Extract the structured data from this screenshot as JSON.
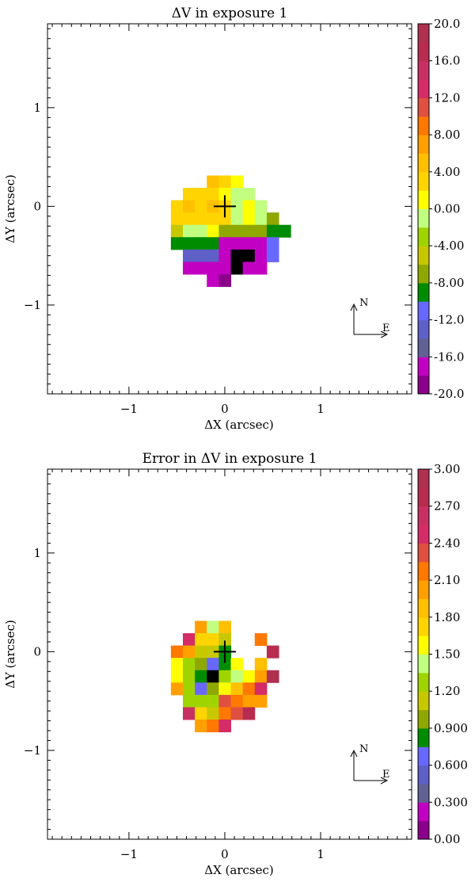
{
  "chart_data": [
    {
      "type": "heatmap",
      "title": "ΔV in exposure 1",
      "xlabel": "ΔX (arcsec)",
      "ylabel": "ΔY (arcsec)",
      "xlim": [
        -1.85,
        1.95
      ],
      "ylim": [
        -1.9,
        1.85
      ],
      "x_ticks": [
        {
          "v": -1,
          "label": "−1"
        },
        {
          "v": 0,
          "label": "0"
        },
        {
          "v": 1,
          "label": "1"
        }
      ],
      "y_ticks": [
        {
          "v": -1,
          "label": "−1"
        },
        {
          "v": 0,
          "label": "0"
        },
        {
          "v": 1,
          "label": "1"
        }
      ],
      "pixel_size_arcsec": 0.125,
      "pixel_grid_origin": [
        -0.8125,
        -0.8125
      ],
      "colorbar": {
        "min": -20.0,
        "max": 20.0,
        "levels": 20,
        "tick_labels": [
          "20.0",
          "16.0",
          "12.0",
          "8.00",
          "4.00",
          "0.00",
          "-4.00",
          "-8.00",
          "-12.0",
          "-16.0",
          "-20.0"
        ]
      },
      "rows": [
        [
          null,
          null,
          null,
          null,
          null,
          4,
          2,
          0,
          null,
          null,
          null,
          null,
          null
        ],
        [
          null,
          null,
          null,
          2,
          3,
          3,
          0,
          -1,
          -2,
          null,
          null,
          null,
          null
        ],
        [
          null,
          null,
          2,
          4,
          2,
          4,
          2,
          -1,
          0,
          -1,
          null,
          null,
          null
        ],
        [
          null,
          null,
          2,
          2,
          2,
          2,
          2,
          -1,
          0,
          -1,
          -8,
          null,
          null
        ],
        [
          null,
          null,
          -6,
          -1,
          -1,
          0,
          -8,
          -8,
          -8,
          -8,
          -10,
          -10,
          null
        ],
        [
          null,
          null,
          -9,
          -9,
          -9,
          -10,
          -17,
          -17,
          -17,
          -17,
          -12,
          null,
          null
        ],
        [
          null,
          null,
          null,
          -13,
          -13,
          -13,
          -17,
          -20,
          -20,
          -18,
          -12,
          null,
          null
        ],
        [
          null,
          null,
          null,
          -17,
          -17,
          -17,
          -18,
          -20,
          -18,
          -17,
          null,
          null,
          null
        ],
        [
          null,
          null,
          null,
          null,
          null,
          -17,
          -19,
          null,
          null,
          null,
          null,
          null,
          null
        ]
      ]
    },
    {
      "type": "heatmap",
      "title": "Error in ΔV in exposure 1",
      "xlabel": "ΔX (arcsec)",
      "ylabel": "ΔY (arcsec)",
      "xlim": [
        -1.85,
        1.95
      ],
      "ylim": [
        -1.9,
        1.85
      ],
      "x_ticks": [
        {
          "v": -1,
          "label": "−1"
        },
        {
          "v": 0,
          "label": "0"
        },
        {
          "v": 1,
          "label": "1"
        }
      ],
      "y_ticks": [
        {
          "v": -1,
          "label": "−1"
        },
        {
          "v": 0,
          "label": "0"
        },
        {
          "v": 1,
          "label": "1"
        }
      ],
      "pixel_size_arcsec": 0.125,
      "pixel_grid_origin": [
        -0.8125,
        -0.8125
      ],
      "colorbar": {
        "min": 0.0,
        "max": 3.0,
        "levels": 20,
        "tick_labels": [
          "3.00",
          "2.70",
          "2.40",
          "2.10",
          "1.80",
          "1.50",
          "1.20",
          "0.900",
          "0.600",
          "0.300",
          "0.00"
        ]
      },
      "rows": [
        [
          null,
          null,
          null,
          null,
          2.05,
          1.45,
          1.8,
          null,
          null,
          null,
          null,
          null,
          null
        ],
        [
          null,
          null,
          null,
          2.5,
          1.75,
          1.75,
          1.1,
          null,
          null,
          2.2,
          null,
          null,
          null
        ],
        [
          null,
          null,
          2.2,
          2.05,
          1.2,
          1.2,
          0.85,
          null,
          null,
          null,
          2.8,
          null,
          null
        ],
        [
          null,
          null,
          1.5,
          1.3,
          1.0,
          0.7,
          0.8,
          1.55,
          null,
          1.8,
          null,
          null,
          null
        ],
        [
          null,
          null,
          1.5,
          1.3,
          0.85,
          0.0,
          1.3,
          1.4,
          1.55,
          2.05,
          2.95,
          null,
          null
        ],
        [
          null,
          null,
          2.05,
          1.25,
          0.65,
          1.0,
          1.6,
          1.8,
          2.2,
          2.5,
          null,
          null,
          null
        ],
        [
          null,
          null,
          null,
          1.25,
          1.25,
          1.25,
          2.4,
          2.2,
          2.05,
          2.05,
          null,
          null,
          null
        ],
        [
          null,
          null,
          null,
          2.55,
          1.75,
          1.2,
          2.1,
          2.3,
          2.8,
          null,
          null,
          null,
          null
        ],
        [
          null,
          null,
          null,
          null,
          1.95,
          2.1,
          2.5,
          null,
          null,
          null,
          null,
          null,
          null
        ]
      ]
    }
  ],
  "colormap": [
    "#8a008a",
    "#c200c2",
    "#616194",
    "#5f5fc8",
    "#6868ff",
    "#008c00",
    "#8fa800",
    "#c8c800",
    "#9fd400",
    "#c2ff80",
    "#ffff00",
    "#ffd400",
    "#ffc000",
    "#ffa000",
    "#ff7800",
    "#e05040",
    "#d42c66",
    "#c83064",
    "#b82c50",
    "#b03050"
  ],
  "center_marker": {
    "x": 0,
    "y": 0
  },
  "compass": {
    "north_label": "N",
    "east_label": "E"
  }
}
